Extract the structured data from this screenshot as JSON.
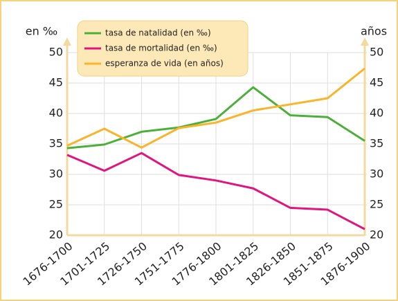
{
  "chart_data": {
    "type": "line",
    "categories": [
      "1676-1700",
      "1701-1725",
      "1726-1750",
      "1751-1775",
      "1776-1800",
      "1801-1825",
      "1826-1850",
      "1851-1875",
      "1876-1900"
    ],
    "ylabel": "en ‰",
    "y2label": "años",
    "ylim": [
      20,
      50
    ],
    "yticks": [
      20,
      25,
      30,
      35,
      40,
      45,
      50
    ],
    "y2lim": [
      20,
      50
    ],
    "y2ticks": [
      20,
      25,
      30,
      35,
      40,
      45,
      50
    ],
    "grid": true,
    "legend": "top-left",
    "series": [
      {
        "name": "tasa de natalidad (en ‰)",
        "color": "#4caf3a",
        "values": [
          34.3,
          34.9,
          37,
          37.7,
          39.1,
          44.3,
          39.7,
          39.4,
          35.5
        ]
      },
      {
        "name": "tasa de mortalidad (en ‰)",
        "color": "#e0157f",
        "values": [
          33.2,
          30.6,
          33.5,
          29.9,
          29,
          27.7,
          24.5,
          24.2,
          21
        ]
      },
      {
        "name": "esperanza de vida (en años)",
        "color": "#f9b42a",
        "axis": "y2",
        "values": [
          34.7,
          37.5,
          34.4,
          37.6,
          38.5,
          40.5,
          41.5,
          42.5,
          47.4
        ]
      }
    ]
  }
}
